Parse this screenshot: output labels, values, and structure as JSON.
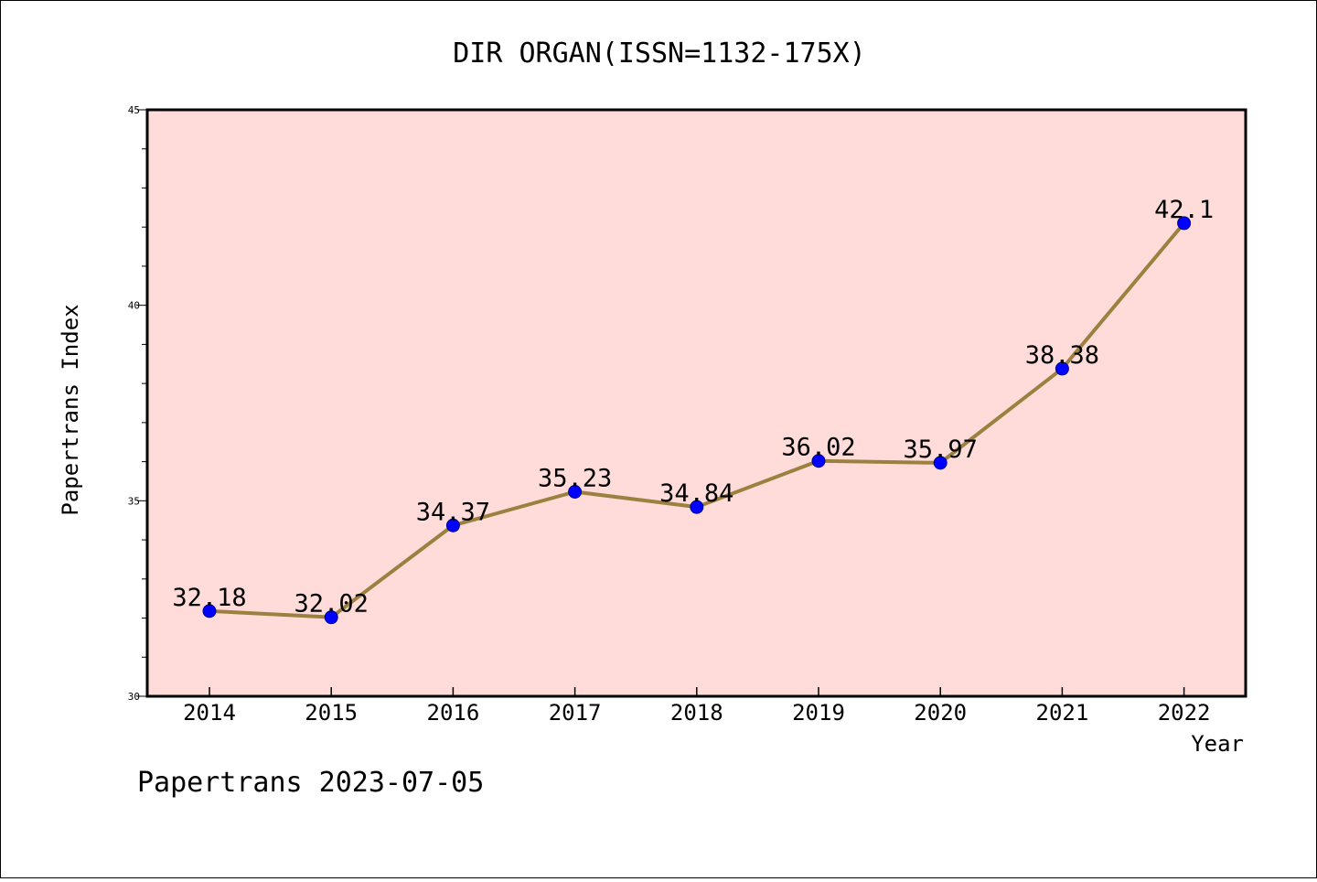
{
  "chart_data": {
    "type": "line",
    "title": "DIR ORGAN(ISSN=1132-175X)",
    "xlabel": "Year",
    "ylabel": "Papertrans Index",
    "ylim": [
      30,
      45
    ],
    "yticks": [
      "30",
      "35",
      "40",
      "45"
    ],
    "categories": [
      "2014",
      "2015",
      "2016",
      "2017",
      "2018",
      "2019",
      "2020",
      "2021",
      "2022"
    ],
    "values": [
      32.18,
      32.02,
      34.37,
      35.23,
      34.84,
      36.02,
      35.97,
      38.38,
      42.1
    ],
    "data_labels": [
      "32.18",
      "32.02",
      "34.37",
      "35.23",
      "34.84",
      "36.02",
      "35.97",
      "38.38",
      "42.1"
    ],
    "grid": false,
    "colors": {
      "plot_background": "#ffdcd9",
      "line": "#9b8040",
      "marker": "#0000ff"
    }
  },
  "footer": "Papertrans 2023-07-05"
}
